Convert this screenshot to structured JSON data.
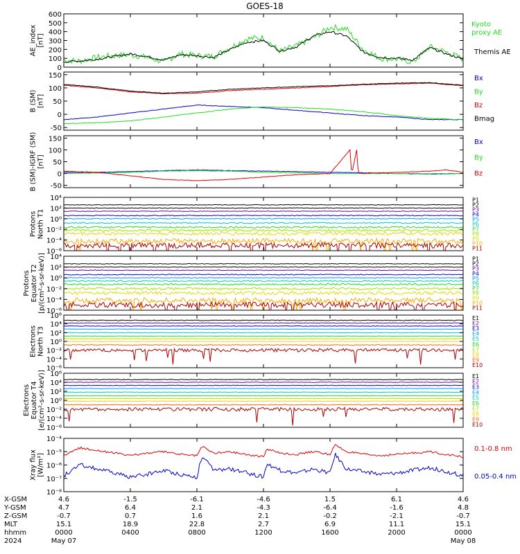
{
  "title": "GOES-18",
  "colors": {
    "black": "#000000",
    "blue": "#0000cc",
    "green": "#22dd22",
    "red": "#dd0000",
    "cyan": "#00cccc",
    "yellow": "#dddd00",
    "purple": "#6600aa",
    "orange": "#ff8800",
    "darkred": "#aa0000"
  },
  "x_ticks": [
    0,
    4,
    8,
    12,
    16,
    20,
    24
  ],
  "footer": {
    "rows": [
      {
        "label": "X-GSM",
        "values": [
          "4.6",
          "-1.5",
          "-6.1",
          "-4.6",
          "1.5",
          "6.1",
          "4.6"
        ]
      },
      {
        "label": "Y-GSM",
        "values": [
          "4.7",
          "6.4",
          "2.1",
          "-4.3",
          "-6.4",
          "-1.6",
          "4.8"
        ]
      },
      {
        "label": "Z-GSM",
        "values": [
          "-0.7",
          "0.7",
          "1.6",
          "2.1",
          "-0.2",
          "-2.1",
          "-0.7"
        ]
      },
      {
        "label": "MLT",
        "values": [
          "15.1",
          "18.9",
          "22.8",
          "2.7",
          "6.9",
          "11.1",
          "15.1"
        ]
      },
      {
        "label": "hhmm",
        "values": [
          "0000",
          "0400",
          "0800",
          "1200",
          "1600",
          "2000",
          "0000"
        ]
      }
    ],
    "year": "2024",
    "start_date": "May 07",
    "end_date": "May 08"
  },
  "chart_data": [
    {
      "type": "line",
      "id": "ae",
      "ylabel": [
        "AE_index",
        "[nT]"
      ],
      "yscale": "linear",
      "ylim": [
        0,
        600
      ],
      "yticks": [
        "0",
        "100",
        "200",
        "300",
        "400",
        "500",
        "600"
      ],
      "ytick_values": [
        0,
        100,
        200,
        300,
        400,
        500,
        600
      ],
      "series": [
        {
          "name": "Kyoto proxy AE",
          "legend_lines": [
            "Kyoto",
            "proxy AE"
          ],
          "color": "#22dd22",
          "noise": 35,
          "x": [
            0,
            1,
            2,
            3,
            4,
            5,
            6,
            7,
            8,
            9,
            10,
            11,
            12,
            13,
            14,
            15,
            16,
            17,
            18,
            19,
            20,
            21,
            22,
            23,
            24
          ],
          "values": [
            80,
            70,
            110,
            130,
            140,
            110,
            60,
            150,
            130,
            120,
            220,
            320,
            330,
            180,
            240,
            330,
            450,
            430,
            200,
            100,
            90,
            60,
            230,
            170,
            90
          ]
        },
        {
          "name": "Themis AE",
          "legend_lines": [
            "Themis AE"
          ],
          "color": "#000000",
          "noise": 12,
          "x": [
            0,
            1,
            2,
            3,
            4,
            5,
            6,
            7,
            8,
            9,
            10,
            11,
            12,
            13,
            14,
            15,
            16,
            17,
            18,
            19,
            20,
            21,
            22,
            23,
            24
          ],
          "values": [
            60,
            70,
            90,
            120,
            150,
            120,
            80,
            140,
            130,
            110,
            200,
            280,
            300,
            180,
            230,
            350,
            400,
            350,
            170,
            110,
            100,
            80,
            220,
            150,
            90
          ]
        }
      ]
    },
    {
      "type": "line",
      "id": "bsm",
      "ylabel": [
        "B (SM)",
        "[nT]"
      ],
      "yscale": "linear",
      "ylim": [
        -60,
        160
      ],
      "yticks": [
        "-50",
        "0",
        "50",
        "100",
        "150"
      ],
      "ytick_values": [
        -50,
        0,
        50,
        100,
        150
      ],
      "series": [
        {
          "name": "Bx",
          "legend_lines": [
            "Bx"
          ],
          "color": "#0000cc",
          "noise": 1,
          "x": [
            0,
            2,
            4,
            6,
            8,
            10,
            12,
            14,
            16,
            18,
            20,
            22,
            24
          ],
          "values": [
            -20,
            -10,
            5,
            20,
            35,
            30,
            25,
            15,
            5,
            -5,
            -10,
            -20,
            -20
          ]
        },
        {
          "name": "By",
          "legend_lines": [
            "By"
          ],
          "color": "#22dd22",
          "noise": 1,
          "x": [
            0,
            2,
            4,
            6,
            8,
            10,
            12,
            14,
            16,
            18,
            20,
            22,
            24
          ],
          "values": [
            -35,
            -32,
            -25,
            -10,
            5,
            20,
            28,
            25,
            20,
            10,
            -5,
            -15,
            -20
          ]
        },
        {
          "name": "Bz",
          "legend_lines": [
            "Bz"
          ],
          "color": "#dd0000",
          "noise": 1,
          "x": [
            0,
            2,
            4,
            6,
            8,
            10,
            12,
            14,
            16,
            18,
            20,
            22,
            24
          ],
          "values": [
            110,
            100,
            85,
            78,
            80,
            90,
            95,
            100,
            105,
            112,
            115,
            118,
            108
          ]
        },
        {
          "name": "Bmag",
          "legend_lines": [
            "Bmag"
          ],
          "color": "#000000",
          "noise": 1,
          "x": [
            0,
            2,
            4,
            6,
            8,
            10,
            12,
            14,
            16,
            18,
            20,
            22,
            24
          ],
          "values": [
            113,
            103,
            88,
            80,
            85,
            95,
            100,
            105,
            108,
            114,
            118,
            120,
            110
          ]
        }
      ]
    },
    {
      "type": "line",
      "id": "bigrf",
      "ylabel": [
        "B (SM)-IGRF (SM)",
        "[nT]"
      ],
      "yscale": "linear",
      "ylim": [
        -60,
        160
      ],
      "yticks": [
        "-50",
        "0",
        "50",
        "100",
        "150"
      ],
      "ytick_values": [
        -50,
        0,
        50,
        100,
        150
      ],
      "series": [
        {
          "name": "Bx",
          "legend_lines": [
            "Bx"
          ],
          "color": "#0000cc",
          "noise": 1,
          "x": [
            0,
            2,
            4,
            6,
            8,
            10,
            12,
            14,
            16,
            18,
            20,
            22,
            24
          ],
          "values": [
            5,
            5,
            8,
            12,
            15,
            12,
            10,
            8,
            5,
            3,
            0,
            -2,
            0
          ]
        },
        {
          "name": "By",
          "legend_lines": [
            "By"
          ],
          "color": "#22dd22",
          "noise": 1,
          "x": [
            0,
            2,
            4,
            6,
            8,
            10,
            12,
            14,
            16,
            18,
            20,
            22,
            24
          ],
          "values": [
            0,
            2,
            5,
            10,
            12,
            10,
            5,
            3,
            0,
            0,
            0,
            0,
            0
          ]
        },
        {
          "name": "Bz",
          "legend_lines": [
            "Bz"
          ],
          "color": "#dd0000",
          "noise": 1,
          "x": [
            0,
            2,
            4,
            6,
            8,
            10,
            12,
            14,
            16,
            17.2,
            17.3,
            17.6,
            17.7,
            18,
            20,
            22,
            23,
            24
          ],
          "values": [
            10,
            5,
            -10,
            -25,
            -30,
            -25,
            -15,
            -5,
            0,
            100,
            -5,
            100,
            0,
            0,
            5,
            10,
            15,
            5
          ]
        }
      ]
    },
    {
      "type": "line",
      "id": "p_north",
      "ylabel": [
        "Protons",
        "North T1"
      ],
      "yscale": "log",
      "ylim": [
        -6,
        4
      ],
      "yticks": [
        "10⁻⁶",
        "10⁻⁴",
        "10⁻²",
        "10⁰",
        "10²",
        "10⁴"
      ],
      "ytick_values": [
        -6,
        -4,
        -2,
        0,
        2,
        4
      ],
      "channels": [
        {
          "name": "P1",
          "color": "#000000",
          "level": 2.6,
          "noise": 0.05
        },
        {
          "name": "P2",
          "color": "#000000",
          "level": 2.0,
          "noise": 0.05
        },
        {
          "name": "P3",
          "color": "#6600aa",
          "level": 1.4,
          "noise": 0.05
        },
        {
          "name": "P4",
          "color": "#0000cc",
          "level": 0.6,
          "noise": 0.08
        },
        {
          "name": "P5",
          "color": "#0099ff",
          "level": 0.0,
          "noise": 0.08
        },
        {
          "name": "P6",
          "color": "#00cccc",
          "level": -0.8,
          "noise": 0.1
        },
        {
          "name": "P7",
          "color": "#22dd22",
          "level": -1.6,
          "noise": 0.15
        },
        {
          "name": "P8",
          "color": "#aadd00",
          "level": -2.2,
          "noise": 0.2
        },
        {
          "name": "P9",
          "color": "#dddd00",
          "level": -2.8,
          "noise": 0.3
        },
        {
          "name": "P10",
          "color": "#ffaa00",
          "level": -4.2,
          "noise": 0.5
        },
        {
          "name": "P11",
          "color": "#aa0000",
          "level": -5.0,
          "noise": 0.5
        }
      ]
    },
    {
      "type": "line",
      "id": "p_eq",
      "ylabel": [
        "Protons",
        "Equator T2",
        "[p/(cm²-s-sr-keV)]"
      ],
      "yscale": "log",
      "ylim": [
        -6,
        4
      ],
      "yticks": [
        "10⁻⁶",
        "10⁻⁴",
        "10⁻²",
        "10⁰",
        "10²",
        "10⁴"
      ],
      "ytick_values": [
        -6,
        -4,
        -2,
        0,
        2,
        4
      ],
      "channels": [
        {
          "name": "P1",
          "color": "#000000",
          "level": 2.6,
          "noise": 0.05
        },
        {
          "name": "P2",
          "color": "#000000",
          "level": 2.0,
          "noise": 0.05
        },
        {
          "name": "P3",
          "color": "#6600aa",
          "level": 1.4,
          "noise": 0.05
        },
        {
          "name": "P4",
          "color": "#0000cc",
          "level": 0.6,
          "noise": 0.08
        },
        {
          "name": "P5",
          "color": "#0099ff",
          "level": 0.0,
          "noise": 0.08
        },
        {
          "name": "P6",
          "color": "#00cccc",
          "level": -0.6,
          "noise": 0.1
        },
        {
          "name": "P7",
          "color": "#22dd22",
          "level": -1.2,
          "noise": 0.15
        },
        {
          "name": "P8",
          "color": "#aadd00",
          "level": -2.0,
          "noise": 0.2
        },
        {
          "name": "P9",
          "color": "#dddd00",
          "level": -2.8,
          "noise": 0.3
        },
        {
          "name": "P10",
          "color": "#ffaa00",
          "level": -4.2,
          "noise": 0.5
        },
        {
          "name": "P11",
          "color": "#aa0000",
          "level": -5.0,
          "noise": 0.5
        }
      ]
    },
    {
      "type": "line",
      "id": "e_north",
      "ylabel": [
        "Electrons",
        "North T3"
      ],
      "yscale": "log",
      "ylim": [
        -6,
        6
      ],
      "yticks": [
        "10⁻⁶",
        "10⁻⁴",
        "10⁻²",
        "10⁰",
        "10²",
        "10⁴",
        "10⁶"
      ],
      "ytick_values": [
        -6,
        -4,
        -2,
        0,
        2,
        4,
        6
      ],
      "channels": [
        {
          "name": "E1",
          "color": "#000000",
          "level": 4.8,
          "noise": 0.08
        },
        {
          "name": "E2",
          "color": "#6600aa",
          "level": 4.2,
          "noise": 0.06
        },
        {
          "name": "E3",
          "color": "#0000cc",
          "level": 3.5,
          "noise": 0.06
        },
        {
          "name": "E4",
          "color": "#0099ff",
          "level": 2.8,
          "noise": 0.05
        },
        {
          "name": "E5",
          "color": "#00cccc",
          "level": 2.0,
          "noise": 0.05
        },
        {
          "name": "E6",
          "color": "#22dd22",
          "level": 1.2,
          "noise": 0.05
        },
        {
          "name": "E7",
          "color": "#aadd00",
          "level": 0.6,
          "noise": 0.05
        },
        {
          "name": "E8",
          "color": "#ffcc00",
          "level": 0.0,
          "noise": 0.05
        },
        {
          "name": "E9",
          "color": "#ff6600",
          "level": -0.8,
          "noise": 0.08
        },
        {
          "name": "E10",
          "color": "#aa0000",
          "level": -2.0,
          "noise": 0.4
        }
      ]
    },
    {
      "type": "line",
      "id": "e_eq",
      "ylabel": [
        "Electrons",
        "Equator T4",
        "[e/(cm²-s-sr-keV)]"
      ],
      "yscale": "log",
      "ylim": [
        -6,
        6
      ],
      "yticks": [
        "10⁻⁶",
        "10⁻⁴",
        "10⁻²",
        "10⁰",
        "10²",
        "10⁴",
        "10⁶"
      ],
      "ytick_values": [
        -6,
        -4,
        -2,
        0,
        2,
        4,
        6
      ],
      "channels": [
        {
          "name": "E1",
          "color": "#000000",
          "level": 4.6,
          "noise": 0.08
        },
        {
          "name": "E2",
          "color": "#6600aa",
          "level": 4.0,
          "noise": 0.06
        },
        {
          "name": "E3",
          "color": "#0000cc",
          "level": 3.3,
          "noise": 0.06
        },
        {
          "name": "E4",
          "color": "#0099ff",
          "level": 2.6,
          "noise": 0.05
        },
        {
          "name": "E5",
          "color": "#00cccc",
          "level": 1.8,
          "noise": 0.05
        },
        {
          "name": "E6",
          "color": "#22dd22",
          "level": 1.0,
          "noise": 0.05
        },
        {
          "name": "E7",
          "color": "#aadd00",
          "level": 0.4,
          "noise": 0.05
        },
        {
          "name": "E8",
          "color": "#ffcc00",
          "level": -0.2,
          "noise": 0.05
        },
        {
          "name": "E9",
          "color": "#ff6600",
          "level": -1.0,
          "noise": 0.08
        },
        {
          "name": "E10",
          "color": "#aa0000",
          "level": -2.0,
          "noise": 0.4
        }
      ]
    },
    {
      "type": "line",
      "id": "xray",
      "ylabel": [
        "Xray flux",
        "[W/m²]"
      ],
      "yscale": "log",
      "ylim": [
        -8,
        -4
      ],
      "yticks": [
        "10⁻⁸",
        "10⁻⁷",
        "10⁻⁶",
        "10⁻⁵",
        "10⁻⁴"
      ],
      "ytick_values": [
        -8,
        -7,
        -6,
        -5,
        -4
      ],
      "series": [
        {
          "name": "0.1-0.8 nm",
          "legend_lines": [
            "0.1-0.8 nm"
          ],
          "color": "#dd0000",
          "noise": 0.08,
          "x": [
            0,
            0.5,
            1,
            2,
            3,
            4,
            5,
            6,
            7,
            8,
            8.3,
            9,
            10,
            11,
            12,
            12.2,
            13,
            14,
            15,
            16,
            16.3,
            17,
            18,
            19,
            20,
            21,
            22,
            23,
            24
          ],
          "values": [
            -5.3,
            -5.0,
            -4.7,
            -4.9,
            -5.1,
            -5.3,
            -5.1,
            -5.0,
            -5.2,
            -5.3,
            -4.6,
            -5.1,
            -5.0,
            -5.2,
            -5.4,
            -4.8,
            -5.1,
            -5.2,
            -5.0,
            -5.2,
            -4.5,
            -5.0,
            -5.2,
            -5.3,
            -5.2,
            -5.1,
            -5.0,
            -5.2,
            -5.4
          ]
        },
        {
          "name": "0.05-0.4 nm",
          "legend_lines": [
            "0.05-0.4 nm"
          ],
          "color": "#0000cc",
          "noise": 0.15,
          "x": [
            0,
            0.5,
            1,
            2,
            3,
            4,
            5,
            6,
            7,
            8,
            8.3,
            9,
            10,
            11,
            12,
            12.2,
            13,
            14,
            15,
            16,
            16.3,
            17,
            18,
            19,
            20,
            21,
            22,
            23,
            24
          ],
          "values": [
            -6.8,
            -6.4,
            -6.0,
            -6.3,
            -6.6,
            -6.9,
            -6.7,
            -6.4,
            -6.7,
            -6.9,
            -5.3,
            -6.4,
            -6.3,
            -6.6,
            -6.9,
            -5.9,
            -6.4,
            -6.6,
            -6.3,
            -6.6,
            -5.2,
            -6.3,
            -6.5,
            -6.7,
            -6.6,
            -6.4,
            -6.2,
            -6.5,
            -6.8
          ]
        }
      ]
    }
  ]
}
